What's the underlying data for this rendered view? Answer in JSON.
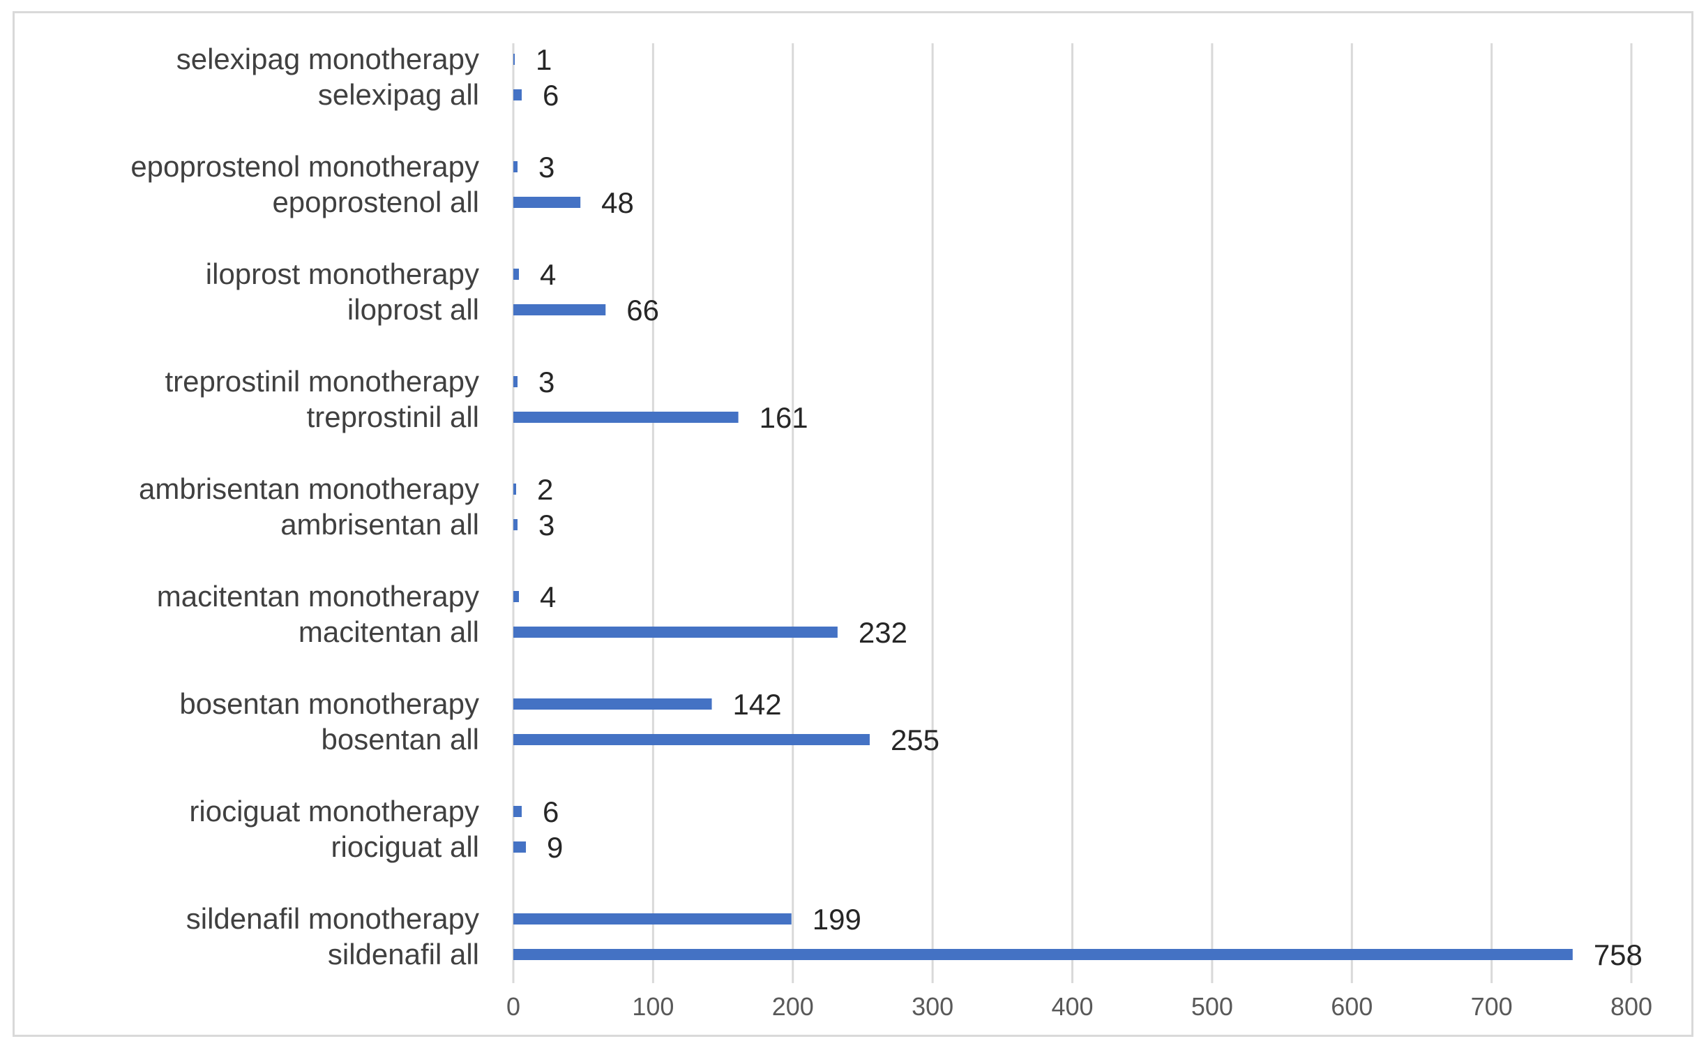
{
  "chart_data": {
    "type": "bar",
    "orientation": "horizontal",
    "title": "",
    "xlabel": "",
    "ylabel": "",
    "xlim": [
      0,
      800
    ],
    "x_ticks": [
      0,
      100,
      200,
      300,
      400,
      500,
      600,
      700,
      800
    ],
    "grid": "vertical",
    "bar_color": "#4472c4",
    "categories_top_to_bottom": [
      "selexipag monotherapy",
      "selexipag all",
      "epoprostenol monotherapy",
      "epoprostenol all",
      "iloprost monotherapy",
      "iloprost all",
      "treprostinil monotherapy",
      "treprostinil all",
      "ambrisentan monotherapy",
      "ambrisentan all",
      "macitentan monotherapy",
      "macitentan all",
      "bosentan monotherapy",
      "bosentan all",
      "riociguat monotherapy",
      "riociguat all",
      "sildenafil monotherapy",
      "sildenafil all"
    ],
    "values": [
      1,
      6,
      3,
      48,
      4,
      66,
      3,
      161,
      2,
      3,
      4,
      232,
      142,
      255,
      6,
      9,
      199,
      758
    ]
  }
}
